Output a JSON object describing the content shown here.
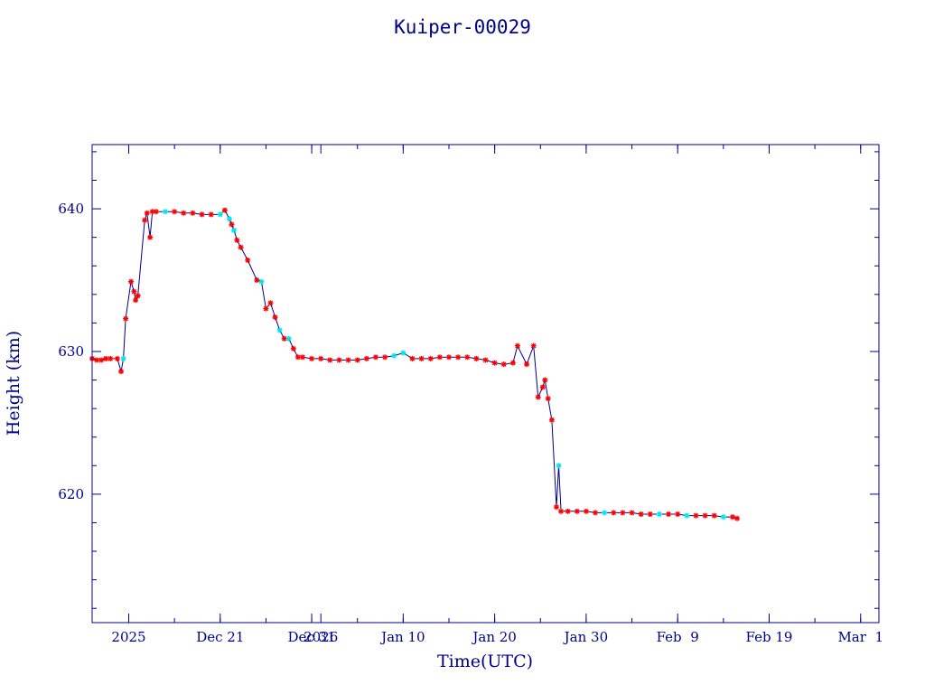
{
  "chart_data": {
    "type": "line",
    "title": "Kuiper-00029",
    "xlabel": "Time(UTC)",
    "ylabel": "Height (km)",
    "ylim": [
      611,
      644.5
    ],
    "xlim": [
      "2025-12-07",
      "2026-03-03"
    ],
    "grid": false,
    "line_color": "#00008b",
    "axis_color": "#00008b",
    "marker_colors": {
      "red": "#ff0000",
      "cyan": "#00e5ee"
    },
    "x_tick_labels": [
      {
        "label": "2025",
        "date": "2025-12-11"
      },
      {
        "label": "Dec 21",
        "date": "2025-12-21"
      },
      {
        "label": "Dec 31",
        "date": "2025-12-31"
      },
      {
        "label": "2026",
        "date": "2026-01-01"
      },
      {
        "label": "Jan 10",
        "date": "2026-01-10"
      },
      {
        "label": "Jan 20",
        "date": "2026-01-20"
      },
      {
        "label": "Jan 30",
        "date": "2026-01-30"
      },
      {
        "label": "Feb  9",
        "date": "2026-02-09"
      },
      {
        "label": "Feb 19",
        "date": "2026-02-19"
      },
      {
        "label": "Mar  1",
        "date": "2026-03-01"
      }
    ],
    "y_ticks": [
      620,
      630,
      640
    ],
    "series": [
      {
        "points": [
          [
            "2025-12-07T00:00",
            629.5,
            "red"
          ],
          [
            "2025-12-07T12:00",
            629.4,
            "red"
          ],
          [
            "2025-12-08T00:00",
            629.4,
            "red"
          ],
          [
            "2025-12-08T12:00",
            629.5,
            "red"
          ],
          [
            "2025-12-09T00:00",
            629.5,
            "red"
          ],
          [
            "2025-12-09T18:00",
            629.5,
            "red"
          ],
          [
            "2025-12-10T04:00",
            628.6,
            "red"
          ],
          [
            "2025-12-10T10:00",
            629.5,
            "cyan"
          ],
          [
            "2025-12-10T16:00",
            632.3,
            "red"
          ],
          [
            "2025-12-11T06:00",
            634.9,
            "red"
          ],
          [
            "2025-12-11T14:00",
            634.2,
            "red"
          ],
          [
            "2025-12-11T18:00",
            633.6,
            "red"
          ],
          [
            "2025-12-12T00:00",
            633.9,
            "red"
          ],
          [
            "2025-12-12T18:00",
            639.2,
            "red"
          ],
          [
            "2025-12-13T00:00",
            639.7,
            "red"
          ],
          [
            "2025-12-13T08:00",
            638.0,
            "red"
          ],
          [
            "2025-12-13T14:00",
            639.8,
            "red"
          ],
          [
            "2025-12-14T00:00",
            639.8,
            "red"
          ],
          [
            "2025-12-15T00:00",
            639.8,
            "cyan"
          ],
          [
            "2025-12-16T00:00",
            639.8,
            "red"
          ],
          [
            "2025-12-17T00:00",
            639.7,
            "red"
          ],
          [
            "2025-12-18T00:00",
            639.7,
            "red"
          ],
          [
            "2025-12-19T00:00",
            639.6,
            "red"
          ],
          [
            "2025-12-20T00:00",
            639.6,
            "red"
          ],
          [
            "2025-12-21T00:00",
            639.6,
            "cyan"
          ],
          [
            "2025-12-21T12:00",
            639.9,
            "red"
          ],
          [
            "2025-12-22T00:00",
            639.3,
            "cyan"
          ],
          [
            "2025-12-22T06:00",
            638.9,
            "red"
          ],
          [
            "2025-12-22T12:00",
            638.5,
            "cyan"
          ],
          [
            "2025-12-22T20:00",
            637.8,
            "red"
          ],
          [
            "2025-12-23T06:00",
            637.3,
            "red"
          ],
          [
            "2025-12-24T00:00",
            636.4,
            "red"
          ],
          [
            "2025-12-25T00:00",
            635.0,
            "red"
          ],
          [
            "2025-12-25T12:00",
            634.9,
            "cyan"
          ],
          [
            "2025-12-26T00:00",
            633.0,
            "red"
          ],
          [
            "2025-12-26T12:00",
            633.4,
            "red"
          ],
          [
            "2025-12-27T00:00",
            632.4,
            "red"
          ],
          [
            "2025-12-27T12:00",
            631.5,
            "cyan"
          ],
          [
            "2025-12-28T00:00",
            630.9,
            "red"
          ],
          [
            "2025-12-28T12:00",
            630.9,
            "cyan"
          ],
          [
            "2025-12-29T00:00",
            630.2,
            "red"
          ],
          [
            "2025-12-29T12:00",
            629.6,
            "red"
          ],
          [
            "2025-12-30T00:00",
            629.6,
            "red"
          ],
          [
            "2025-12-31T00:00",
            629.5,
            "red"
          ],
          [
            "2026-01-01T00:00",
            629.5,
            "red"
          ],
          [
            "2026-01-02T00:00",
            629.4,
            "red"
          ],
          [
            "2026-01-03T00:00",
            629.4,
            "red"
          ],
          [
            "2026-01-04T00:00",
            629.4,
            "red"
          ],
          [
            "2026-01-05T00:00",
            629.4,
            "red"
          ],
          [
            "2026-01-06T00:00",
            629.5,
            "red"
          ],
          [
            "2026-01-07T00:00",
            629.6,
            "red"
          ],
          [
            "2026-01-08T00:00",
            629.6,
            "red"
          ],
          [
            "2026-01-09T00:00",
            629.7,
            "cyan"
          ],
          [
            "2026-01-10T00:00",
            629.9,
            "cyan"
          ],
          [
            "2026-01-11T00:00",
            629.5,
            "red"
          ],
          [
            "2026-01-12T00:00",
            629.5,
            "red"
          ],
          [
            "2026-01-13T00:00",
            629.5,
            "red"
          ],
          [
            "2026-01-14T00:00",
            629.6,
            "red"
          ],
          [
            "2026-01-15T00:00",
            629.6,
            "red"
          ],
          [
            "2026-01-16T00:00",
            629.6,
            "red"
          ],
          [
            "2026-01-17T00:00",
            629.6,
            "red"
          ],
          [
            "2026-01-18T00:00",
            629.5,
            "red"
          ],
          [
            "2026-01-19T00:00",
            629.4,
            "red"
          ],
          [
            "2026-01-20T00:00",
            629.2,
            "red"
          ],
          [
            "2026-01-21T00:00",
            629.1,
            "red"
          ],
          [
            "2026-01-22T00:00",
            629.2,
            "red"
          ],
          [
            "2026-01-22T12:00",
            630.4,
            "red"
          ],
          [
            "2026-01-23T12:00",
            629.1,
            "red"
          ],
          [
            "2026-01-24T06:00",
            630.4,
            "red"
          ],
          [
            "2026-01-24T18:00",
            626.8,
            "red"
          ],
          [
            "2026-01-25T06:00",
            627.5,
            "red"
          ],
          [
            "2026-01-25T12:00",
            628.0,
            "red"
          ],
          [
            "2026-01-25T20:00",
            626.7,
            "red"
          ],
          [
            "2026-01-26T06:00",
            625.2,
            "red"
          ],
          [
            "2026-01-26T18:00",
            619.1,
            "red"
          ],
          [
            "2026-01-27T00:00",
            622.0,
            "cyan"
          ],
          [
            "2026-01-27T06:00",
            618.8,
            "red"
          ],
          [
            "2026-01-28T00:00",
            618.8,
            "red"
          ],
          [
            "2026-01-29T00:00",
            618.8,
            "red"
          ],
          [
            "2026-01-30T00:00",
            618.8,
            "red"
          ],
          [
            "2026-01-31T00:00",
            618.7,
            "red"
          ],
          [
            "2026-02-01T00:00",
            618.7,
            "cyan"
          ],
          [
            "2026-02-02T00:00",
            618.7,
            "red"
          ],
          [
            "2026-02-03T00:00",
            618.7,
            "red"
          ],
          [
            "2026-02-04T00:00",
            618.7,
            "red"
          ],
          [
            "2026-02-05T00:00",
            618.6,
            "red"
          ],
          [
            "2026-02-06T00:00",
            618.6,
            "red"
          ],
          [
            "2026-02-07T00:00",
            618.6,
            "cyan"
          ],
          [
            "2026-02-08T00:00",
            618.6,
            "red"
          ],
          [
            "2026-02-09T00:00",
            618.6,
            "red"
          ],
          [
            "2026-02-10T00:00",
            618.5,
            "cyan"
          ],
          [
            "2026-02-11T00:00",
            618.5,
            "red"
          ],
          [
            "2026-02-12T00:00",
            618.5,
            "red"
          ],
          [
            "2026-02-13T00:00",
            618.5,
            "red"
          ],
          [
            "2026-02-14T00:00",
            618.4,
            "cyan"
          ],
          [
            "2026-02-15T00:00",
            618.4,
            "red"
          ],
          [
            "2026-02-15T12:00",
            618.3,
            "red"
          ]
        ]
      }
    ]
  }
}
